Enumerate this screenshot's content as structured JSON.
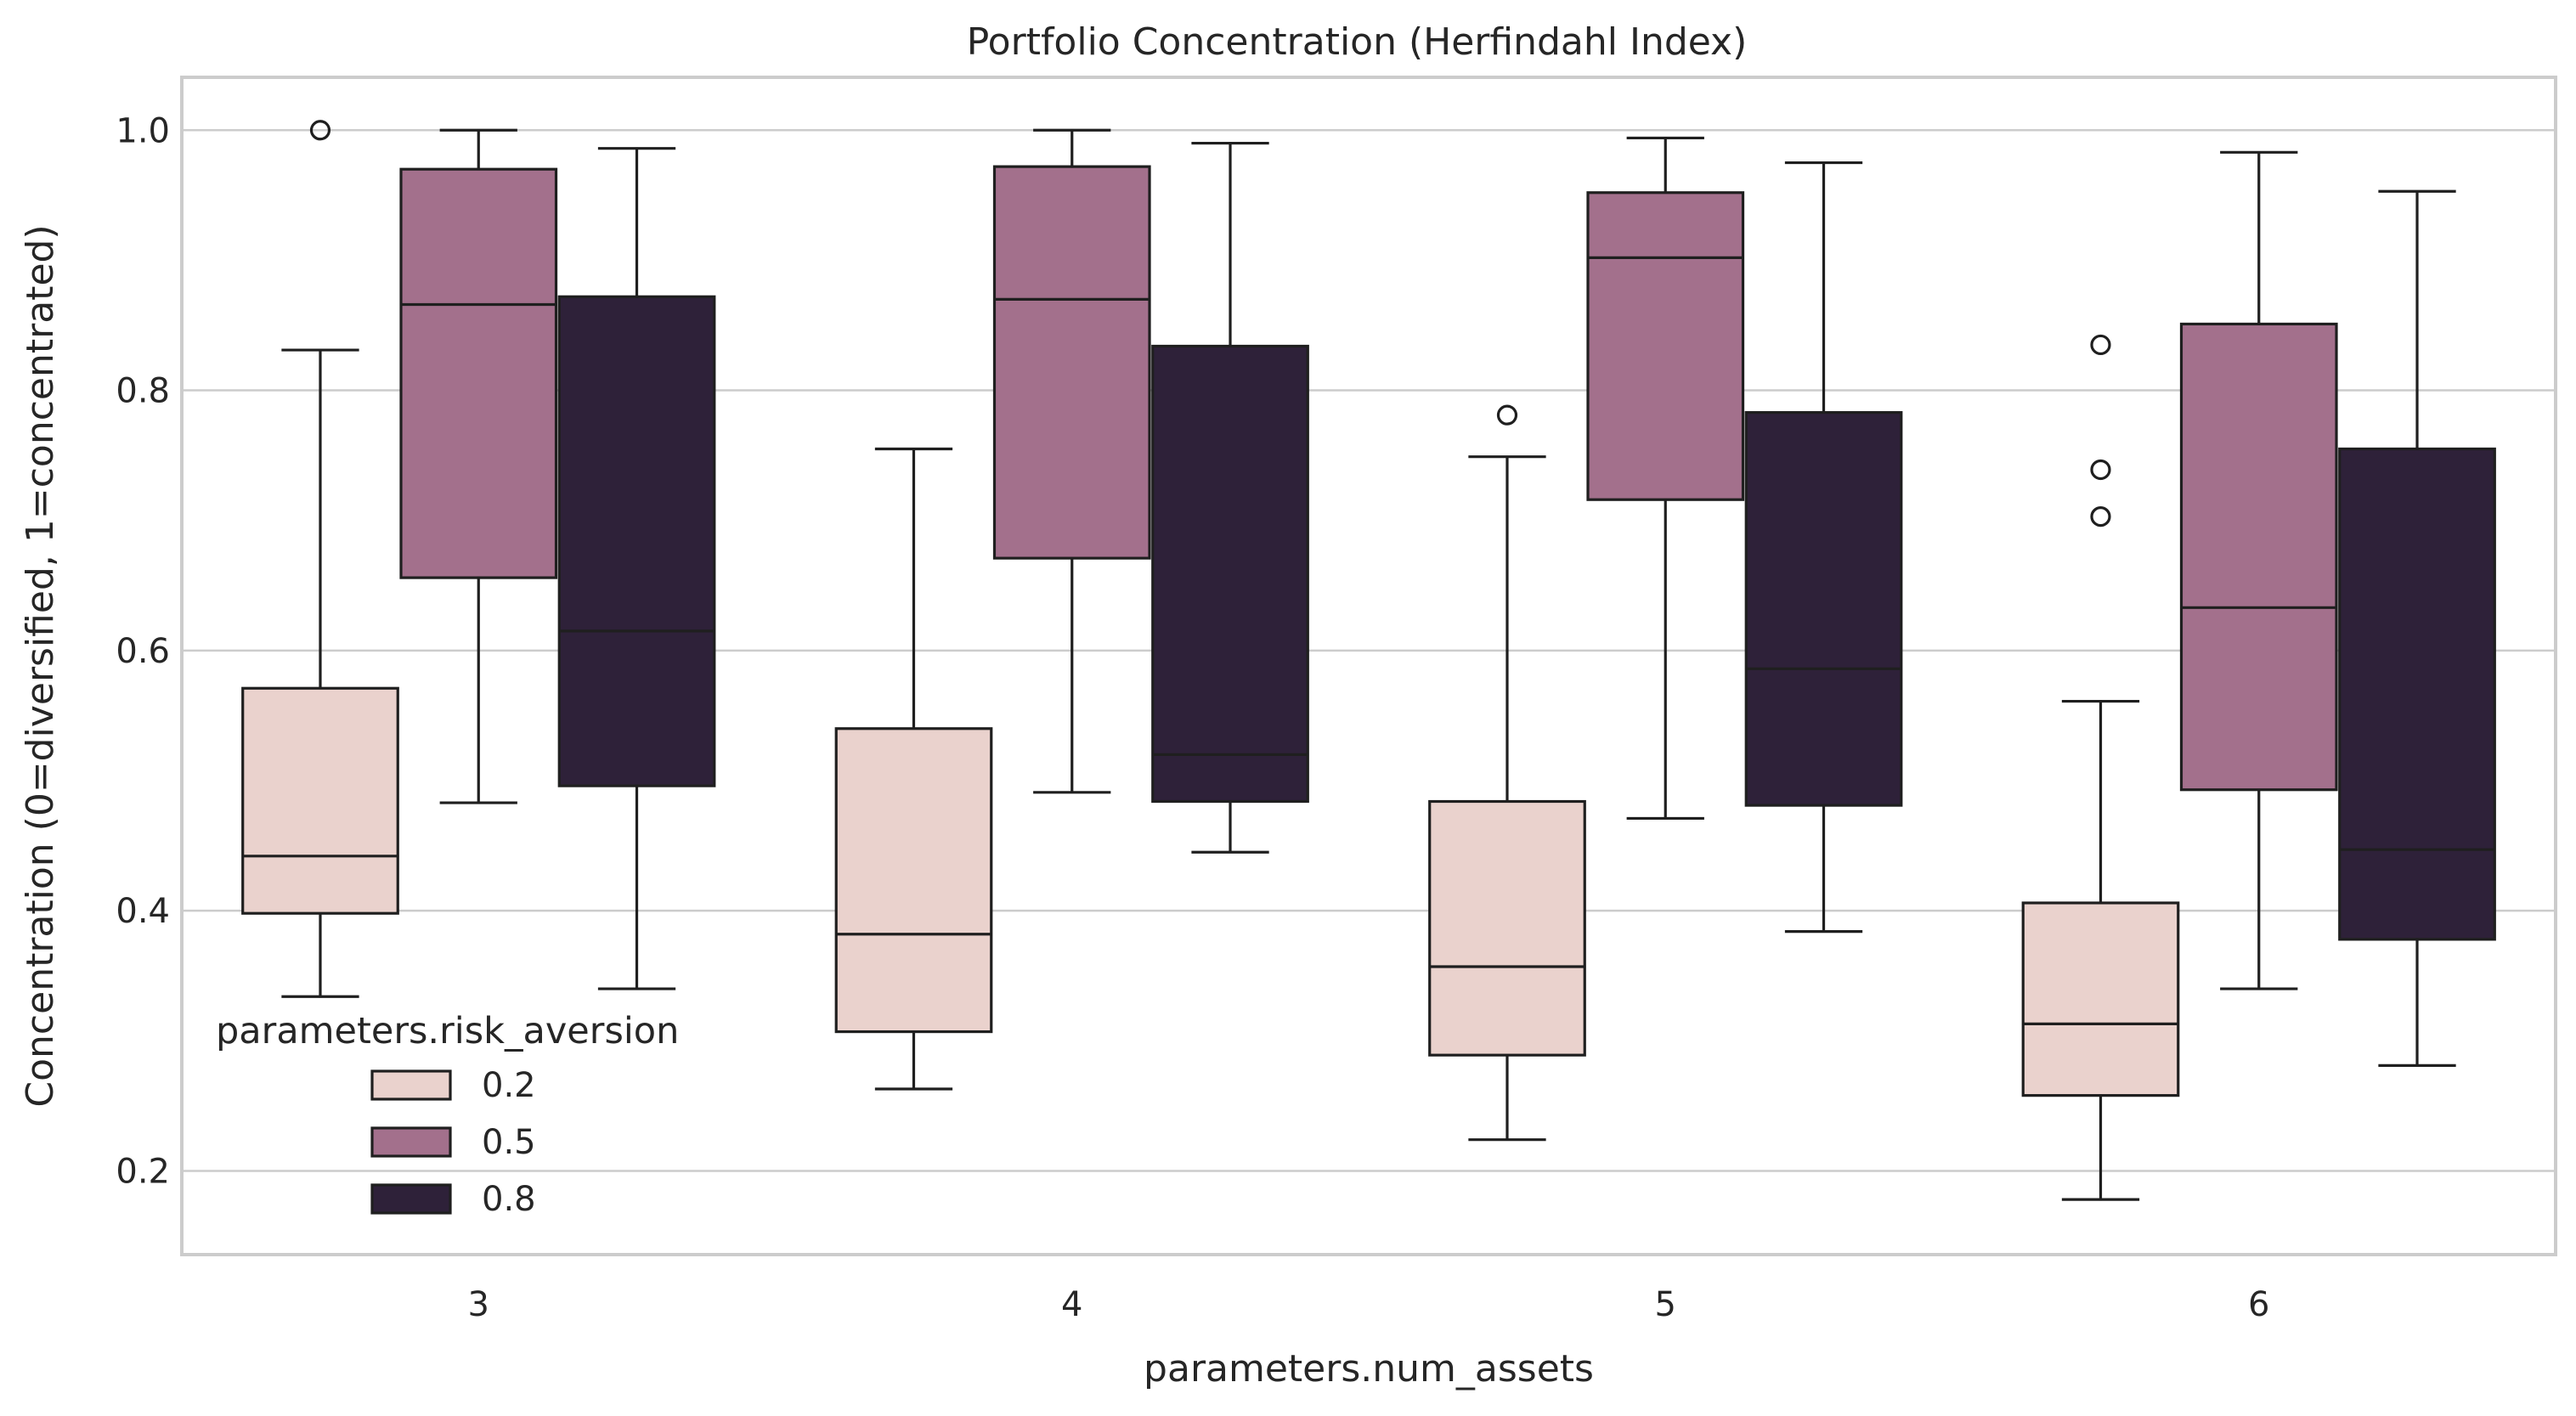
{
  "chart_data": {
    "type": "boxplot",
    "title": "Portfolio Concentration (Herfindahl Index)",
    "xlabel": "parameters.num_assets",
    "ylabel": "Concentration (0=diversified, 1=concentrated)",
    "ylim": [
      0.135,
      1.04
    ],
    "yticks": [
      0.2,
      0.4,
      0.6,
      0.8,
      1.0
    ],
    "ytick_labels": [
      "0.2",
      "0.4",
      "0.6",
      "0.8",
      "1.0"
    ],
    "categories": [
      "3",
      "4",
      "5",
      "6"
    ],
    "grid": "horizontal",
    "legend": {
      "title": "parameters.risk_aversion",
      "placement": "lower-left"
    },
    "series": [
      {
        "name": "0.2",
        "color": "#ead2cd",
        "boxes": [
          {
            "whislo": 0.334,
            "q1": 0.398,
            "med": 0.442,
            "q3": 0.571,
            "whishi": 0.831,
            "fliers": [
              1.0
            ]
          },
          {
            "whislo": 0.263,
            "q1": 0.307,
            "med": 0.382,
            "q3": 0.54,
            "whishi": 0.755,
            "fliers": []
          },
          {
            "whislo": 0.224,
            "q1": 0.289,
            "med": 0.357,
            "q3": 0.484,
            "whishi": 0.749,
            "fliers": [
              0.781
            ]
          },
          {
            "whislo": 0.178,
            "q1": 0.258,
            "med": 0.313,
            "q3": 0.406,
            "whishi": 0.561,
            "fliers": [
              0.835,
              0.739,
              0.703
            ]
          }
        ]
      },
      {
        "name": "0.5",
        "color": "#a3708c",
        "boxes": [
          {
            "whislo": 0.483,
            "q1": 0.656,
            "med": 0.866,
            "q3": 0.97,
            "whishi": 1.0,
            "fliers": []
          },
          {
            "whislo": 0.491,
            "q1": 0.671,
            "med": 0.87,
            "q3": 0.972,
            "whishi": 1.0,
            "fliers": []
          },
          {
            "whislo": 0.471,
            "q1": 0.716,
            "med": 0.902,
            "q3": 0.952,
            "whishi": 0.994,
            "fliers": []
          },
          {
            "whislo": 0.34,
            "q1": 0.493,
            "med": 0.633,
            "q3": 0.851,
            "whishi": 0.983,
            "fliers": []
          }
        ]
      },
      {
        "name": "0.8",
        "color": "#2e2139",
        "boxes": [
          {
            "whislo": 0.34,
            "q1": 0.496,
            "med": 0.615,
            "q3": 0.872,
            "whishi": 0.986,
            "fliers": []
          },
          {
            "whislo": 0.445,
            "q1": 0.484,
            "med": 0.52,
            "q3": 0.834,
            "whishi": 0.99,
            "fliers": []
          },
          {
            "whislo": 0.384,
            "q1": 0.481,
            "med": 0.586,
            "q3": 0.783,
            "whishi": 0.975,
            "fliers": []
          },
          {
            "whislo": 0.281,
            "q1": 0.378,
            "med": 0.447,
            "q3": 0.755,
            "whishi": 0.953,
            "fliers": []
          }
        ]
      }
    ]
  }
}
